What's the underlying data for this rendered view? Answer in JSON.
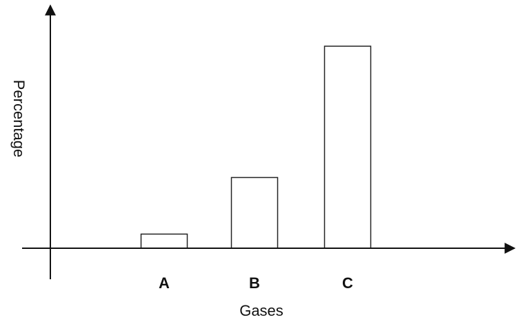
{
  "chart_data": {
    "type": "bar",
    "title": "",
    "xlabel": "Gases",
    "ylabel": "Percentage",
    "categories": [
      "A",
      "B",
      "C"
    ],
    "values": [
      7,
      35,
      100
    ],
    "ylim": [
      0,
      100
    ],
    "grid": false,
    "legend": "none",
    "colors": {
      "bar_fill": "#ffffff",
      "bar_stroke": "#222222",
      "axis": "#111111"
    }
  }
}
